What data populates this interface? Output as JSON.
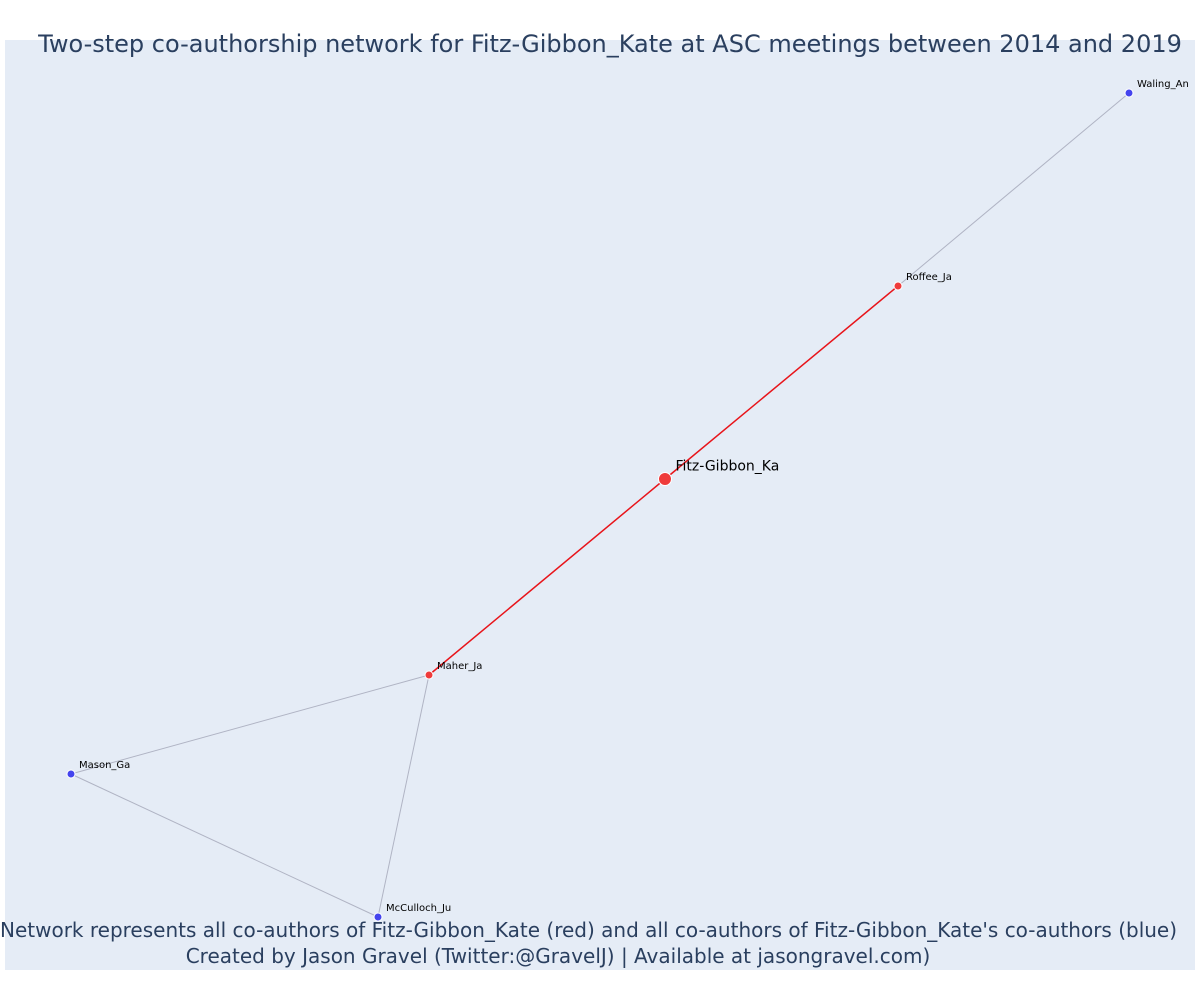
{
  "title": "Two-step co-authorship network for Fitz-Gibbon_Kate at ASC meetings between 2014 and 2019",
  "caption": {
    "line1": "Network represents all co-authors of Fitz-Gibbon_Kate (red) and all co-authors of Fitz-Gibbon_Kate's co-authors (blue)",
    "line2": "Created by Jason Gravel (Twitter:@GravelJ) | Available at jasongravel.com)"
  },
  "colors": {
    "plot_background": "#e5ecf6",
    "focal_and_coauthor_node": "#ef3b3b",
    "second_step_node": "#4444ee",
    "focal_edge": "#e8141a",
    "other_edge": "#b0b4c4"
  },
  "nodes": [
    {
      "id": "Fitz-Gibbon_Ka",
      "label": "Fitz-Gibbon_Ka",
      "group": "focal"
    },
    {
      "id": "Roffee_Ja",
      "label": "Roffee_Ja",
      "group": "coauthor"
    },
    {
      "id": "Maher_Ja",
      "label": "Maher_Ja",
      "group": "coauthor"
    },
    {
      "id": "Waling_An",
      "label": "Waling_An",
      "group": "second_step"
    },
    {
      "id": "Mason_Ga",
      "label": "Mason_Ga",
      "group": "second_step"
    },
    {
      "id": "McCulloch_Ju",
      "label": "McCulloch_Ju",
      "group": "second_step"
    }
  ],
  "edges": [
    {
      "source": "Fitz-Gibbon_Ka",
      "target": "Roffee_Ja",
      "type": "focal"
    },
    {
      "source": "Fitz-Gibbon_Ka",
      "target": "Maher_Ja",
      "type": "focal"
    },
    {
      "source": "Roffee_Ja",
      "target": "Waling_An",
      "type": "other"
    },
    {
      "source": "Maher_Ja",
      "target": "Mason_Ga",
      "type": "other"
    },
    {
      "source": "Maher_Ja",
      "target": "McCulloch_Ju",
      "type": "other"
    },
    {
      "source": "Mason_Ga",
      "target": "McCulloch_Ju",
      "type": "other"
    }
  ]
}
